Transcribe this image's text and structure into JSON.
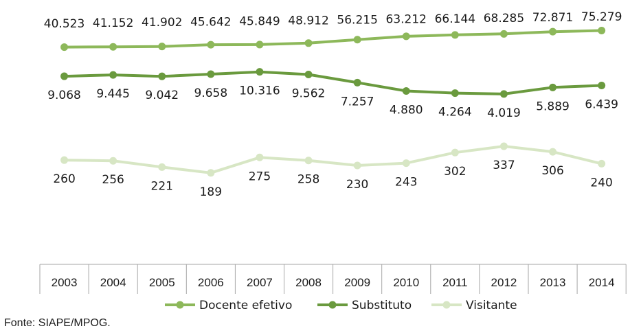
{
  "chart_data": {
    "type": "line",
    "categories": [
      "2003",
      "2004",
      "2005",
      "2006",
      "2007",
      "2008",
      "2009",
      "2010",
      "2011",
      "2012",
      "2013",
      "2014"
    ],
    "series": [
      {
        "name": "Docente efetivo",
        "color": "#8db85a",
        "values": [
          40523,
          41152,
          41902,
          45642,
          45849,
          48912,
          56215,
          63212,
          66144,
          68285,
          72871,
          75279
        ],
        "labels": [
          "40.523",
          "41.152",
          "41.902",
          "45.642",
          "45.849",
          "48.912",
          "56.215",
          "63.212",
          "66.144",
          "68.285",
          "72.871",
          "75.279"
        ]
      },
      {
        "name": "Substituto",
        "color": "#6a9a3e",
        "values": [
          9068,
          9445,
          9042,
          9658,
          10316,
          9562,
          7257,
          4880,
          4264,
          4019,
          5889,
          6439
        ],
        "labels": [
          "9.068",
          "9.445",
          "9.042",
          "9.658",
          "10.316",
          "9.562",
          "7.257",
          "4.880",
          "4.264",
          "4.019",
          "5.889",
          "6.439"
        ]
      },
      {
        "name": "Visitante",
        "color": "#d7e6c4",
        "values": [
          260,
          256,
          221,
          189,
          275,
          258,
          230,
          243,
          302,
          337,
          306,
          240
        ],
        "labels": [
          "260",
          "256",
          "221",
          "189",
          "275",
          "258",
          "230",
          "243",
          "302",
          "337",
          "306",
          "240"
        ]
      }
    ],
    "legend_position": "bottom",
    "grid": false
  },
  "source": "Fonte: SIAPE/MPOG."
}
